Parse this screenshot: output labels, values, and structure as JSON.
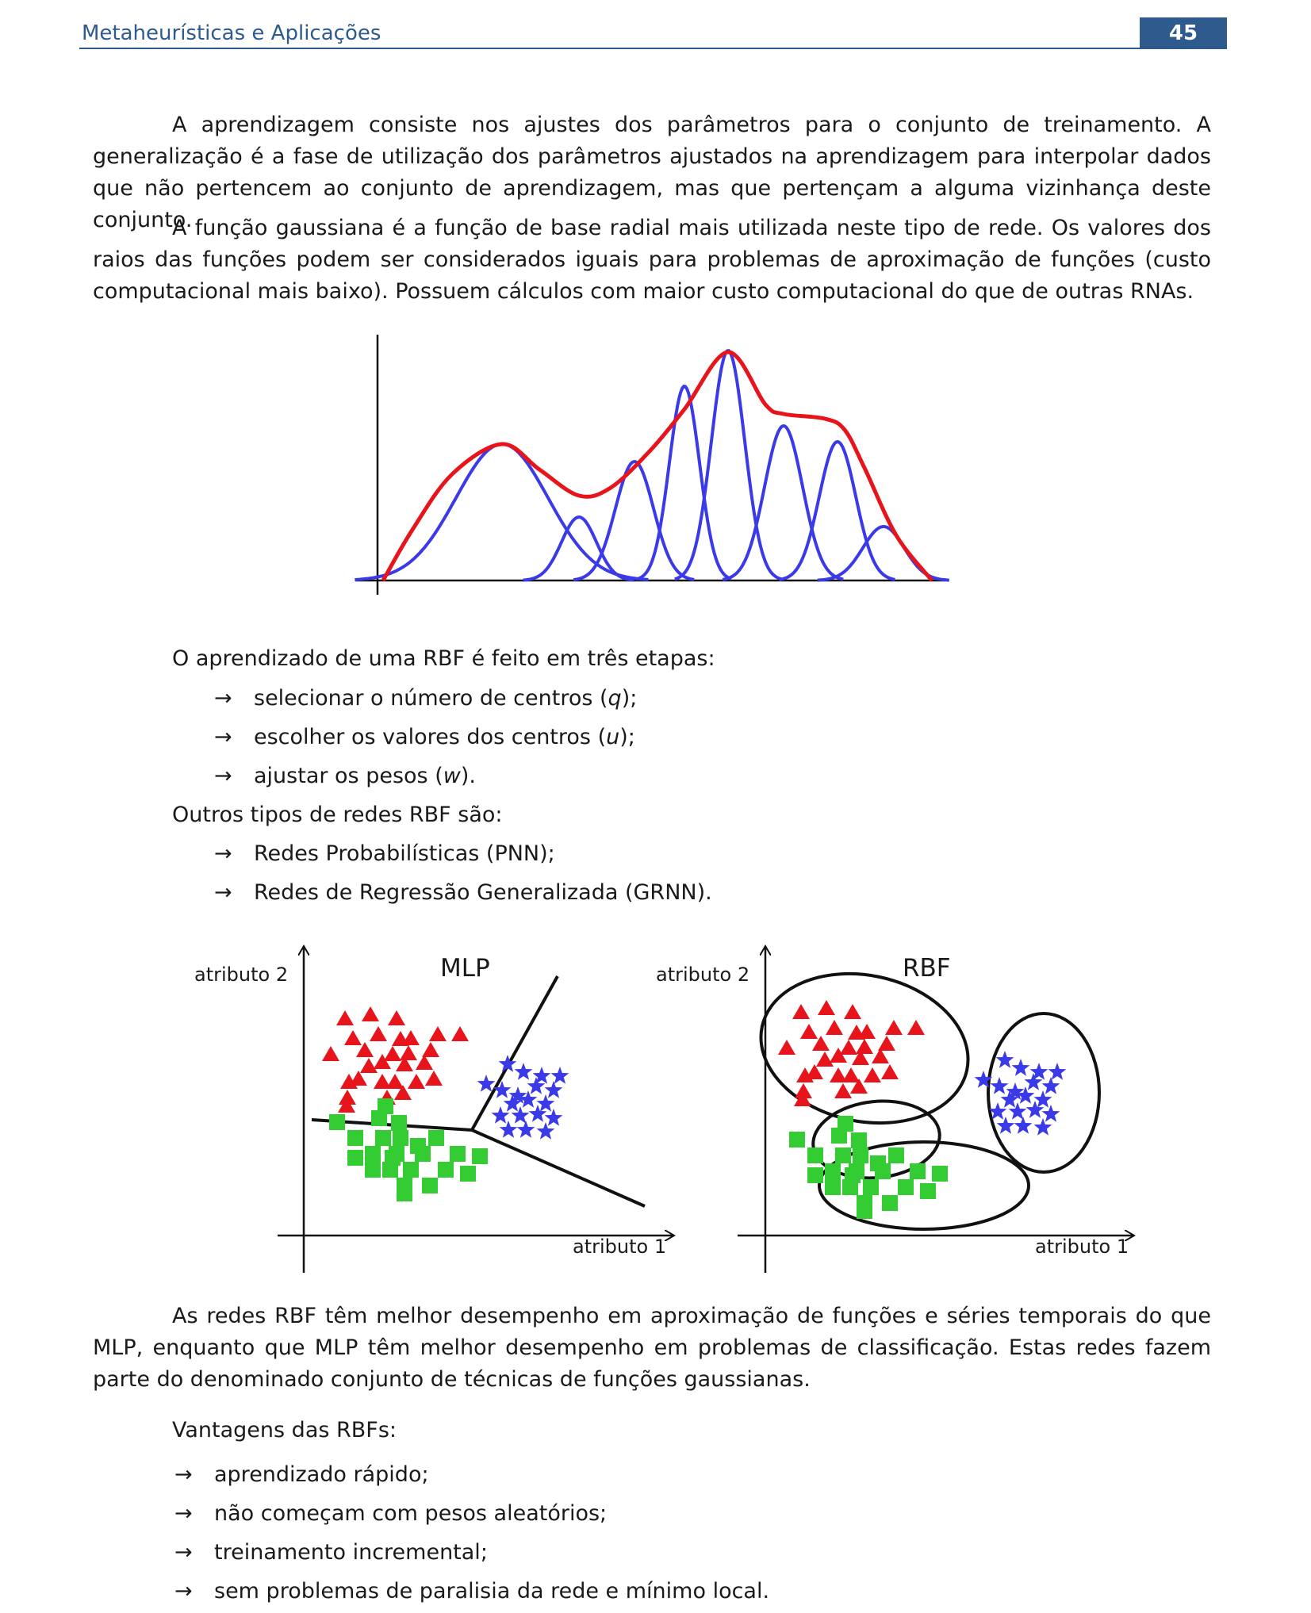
{
  "header": {
    "title": "Metaheurísticas e Aplicações",
    "page_number": "45"
  },
  "paragraphs": {
    "p1": "A aprendizagem consiste nos ajustes dos parâmetros para o conjunto de treinamento. A generalização é a fase de utilização dos parâmetros ajustados na aprendizagem para interpolar dados que não pertencem ao conjunto de aprendizagem, mas que pertençam a alguma vizinhança deste conjunto.",
    "p2": "A função gaussiana é a função de base radial mais utilizada neste tipo de rede. Os valores dos raios das funções podem ser considerados iguais para problemas de aproximação de funções (custo computacional mais baixo). Possuem cálculos com maior custo computacional do que de outras RNAs.",
    "p3": "As redes RBF têm melhor desempenho em aproximação de funções e séries temporais do que MLP, enquanto que MLP têm melhor desempenho em problemas de classificação. Estas redes fazem parte do denominado conjunto de técnicas de funções gaussianas."
  },
  "steps_intro": "O aprendizado de uma RBF é feito em três etapas:",
  "steps": [
    {
      "text": "selecionar o número de centros (",
      "var": "q",
      "end": ");"
    },
    {
      "text": "escolher os valores dos centros (",
      "var": "u",
      "end": ");"
    },
    {
      "text": "ajustar os pesos (",
      "var": "w",
      "end": ")."
    }
  ],
  "types_intro": "Outros tipos de redes RBF são:",
  "types": [
    "Redes Probabilísticas (PNN);",
    "Redes de Regressão Generalizada (GRNN)."
  ],
  "advantages_intro": "Vantagens das RBFs:",
  "advantages": [
    "aprendizado rápido;",
    "não começam com pesos aleatórios;",
    "treinamento incremental;",
    "sem problemas de paralisia da rede e mínimo local."
  ],
  "arrow_glyph": "→",
  "figure_mlp": {
    "title": "MLP",
    "xlabel": "atributo 1",
    "ylabel": "atributo 2"
  },
  "figure_rbf": {
    "title": "RBF",
    "xlabel": "atributo 1",
    "ylabel": "atributo 2"
  },
  "colors": {
    "header_blue": "#2e5a8e",
    "red": "#e8141c",
    "blue": "#3a3ae8",
    "green": "#33cc33"
  }
}
